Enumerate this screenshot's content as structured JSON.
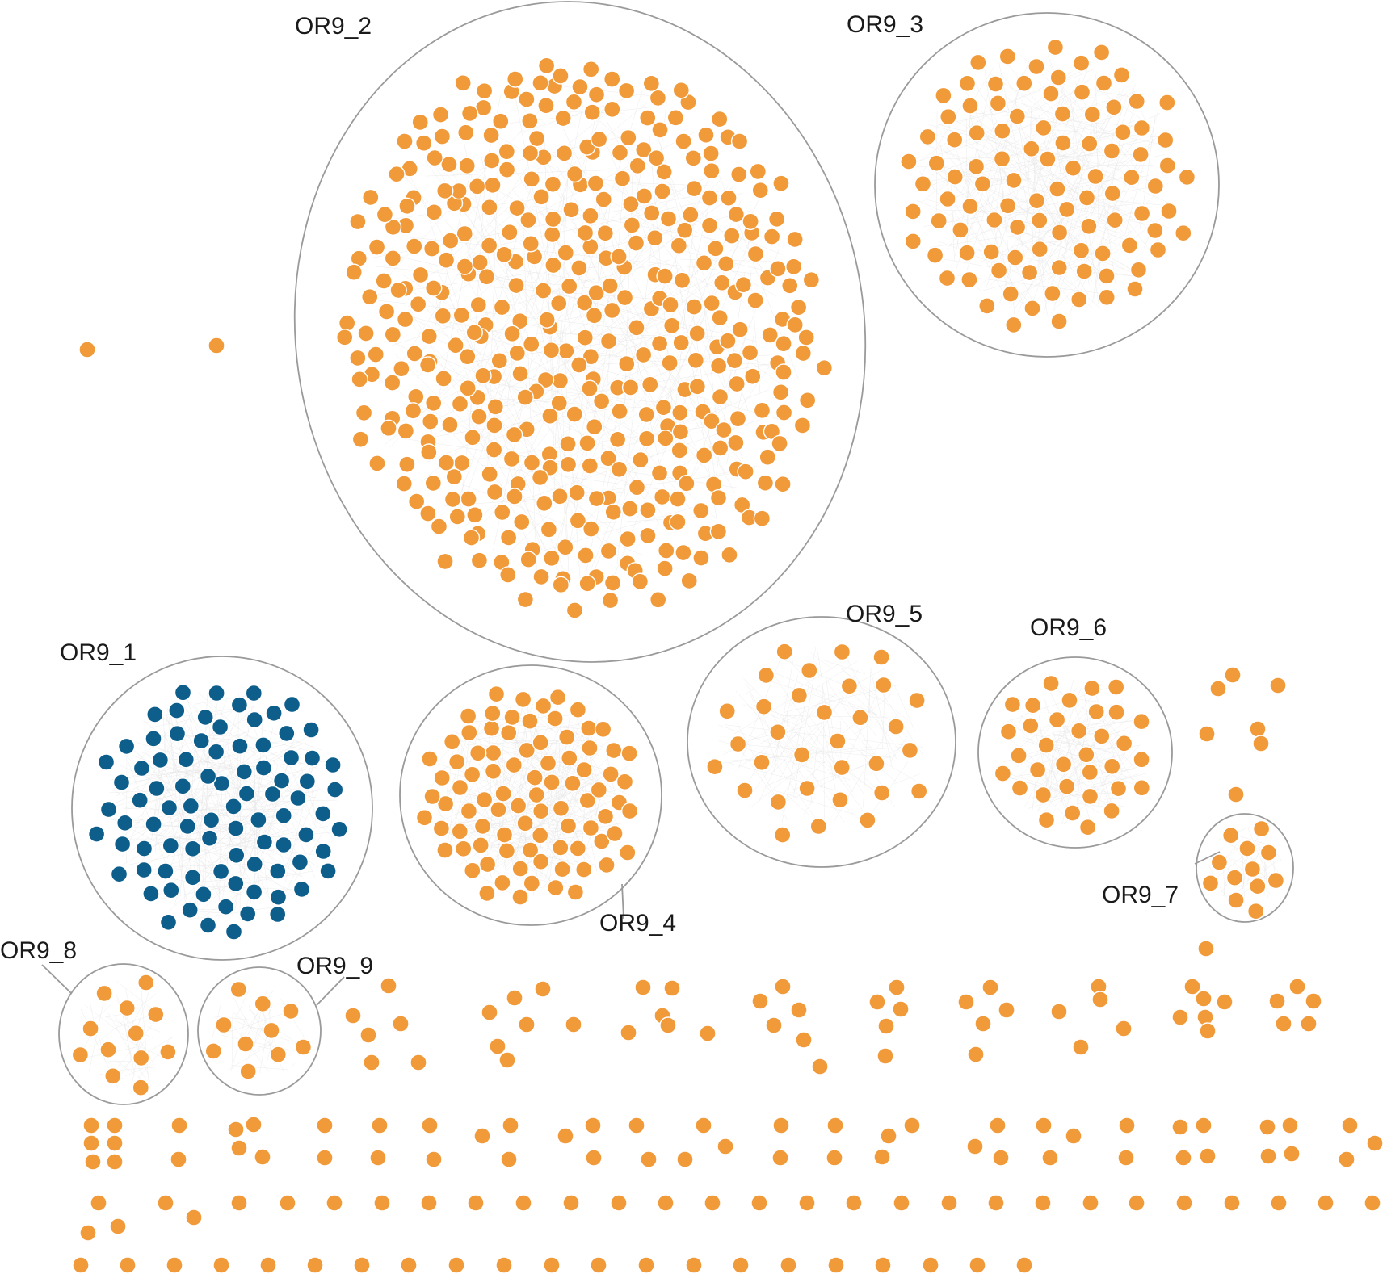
{
  "colors": {
    "background": "#ffffff",
    "node_default": "#F09A3A",
    "node_highlight": "#0E5E8C",
    "boundary": "#9a9a9a",
    "edges": "#d0d0d0"
  },
  "clusters": [
    {
      "id": "OR9_1",
      "label": "OR9_1",
      "node_color": "#0E5E8C",
      "node_count": 88
    },
    {
      "id": "OR9_2",
      "label": "OR9_2",
      "node_color": "#F09A3A",
      "node_count": 420
    },
    {
      "id": "OR9_3",
      "label": "OR9_3",
      "node_color": "#F09A3A",
      "node_count": 100
    },
    {
      "id": "OR9_4",
      "label": "OR9_4",
      "node_color": "#F09A3A",
      "node_count": 86
    },
    {
      "id": "OR9_5",
      "label": "OR9_5",
      "node_color": "#F09A3A",
      "node_count": 32
    },
    {
      "id": "OR9_6",
      "label": "OR9_6",
      "node_color": "#F09A3A",
      "node_count": 34
    },
    {
      "id": "OR9_7",
      "label": "OR9_7",
      "node_color": "#F09A3A",
      "node_count": 12
    },
    {
      "id": "OR9_8",
      "label": "OR9_8",
      "node_color": "#F09A3A",
      "node_count": 12
    },
    {
      "id": "OR9_9",
      "label": "OR9_9",
      "node_color": "#F09A3A",
      "node_count": 10
    }
  ]
}
